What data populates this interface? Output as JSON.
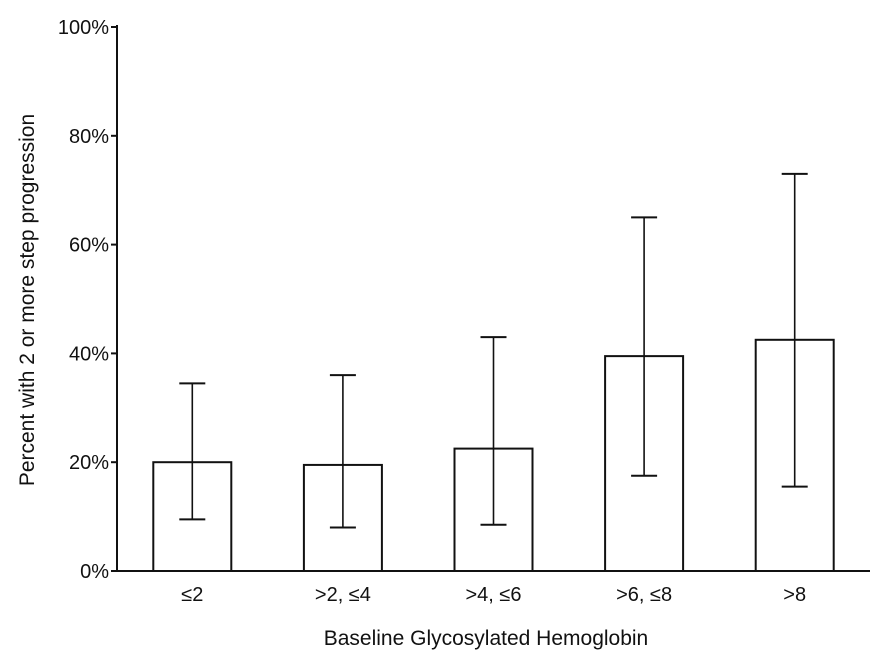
{
  "chart_data": {
    "type": "bar",
    "title": "",
    "xlabel": "Baseline Glycosylated Hemoglobin",
    "ylabel": "Percent with 2 or more step progression",
    "categories": [
      "≤2",
      ">2, ≤4",
      ">4, ≤6",
      ">6, ≤8",
      ">8"
    ],
    "values": [
      20,
      19.5,
      22.5,
      39.5,
      42.5
    ],
    "error_low": [
      9.5,
      8,
      8.5,
      17.5,
      15.5
    ],
    "error_high": [
      34.5,
      36,
      43,
      65,
      73
    ],
    "ylim": [
      0,
      100
    ],
    "yticks": [
      0,
      20,
      40,
      60,
      80,
      100
    ],
    "ytick_labels": [
      "0%",
      "20%",
      "40%",
      "60%",
      "80%",
      "100%"
    ],
    "grid": false,
    "legend": "none",
    "bar_fill": "#ffffff",
    "line_color": "#111111"
  }
}
